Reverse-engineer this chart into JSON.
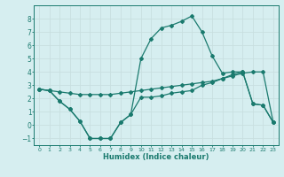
{
  "xlabel": "Humidex (Indice chaleur)",
  "xlim": [
    -0.5,
    23.5
  ],
  "ylim": [
    -1.5,
    9.0
  ],
  "xticks": [
    0,
    1,
    2,
    3,
    4,
    5,
    6,
    7,
    8,
    9,
    10,
    11,
    12,
    13,
    14,
    15,
    16,
    17,
    18,
    19,
    20,
    21,
    22,
    23
  ],
  "yticks": [
    -1,
    0,
    1,
    2,
    3,
    4,
    5,
    6,
    7,
    8
  ],
  "bg_color": "#d6eef0",
  "line_color": "#1a7a6e",
  "grid_color": "#c8dfe0",
  "s1_x": [
    0,
    1,
    2,
    3,
    4,
    5,
    6,
    7,
    8,
    9,
    10,
    11,
    12,
    13,
    14,
    15,
    16,
    17,
    18,
    19,
    20,
    21,
    22,
    23
  ],
  "s1_y": [
    2.7,
    2.6,
    1.8,
    1.2,
    0.3,
    -1.0,
    -1.0,
    -1.0,
    0.2,
    0.8,
    5.0,
    6.5,
    7.3,
    7.5,
    7.8,
    8.2,
    7.0,
    5.2,
    3.9,
    4.0,
    4.0,
    1.6,
    1.5,
    0.2
  ],
  "s2_x": [
    0,
    1,
    2,
    3,
    4,
    5,
    6,
    7,
    8,
    9,
    10,
    11,
    12,
    13,
    14,
    15,
    16,
    17,
    18,
    19,
    20,
    21,
    22,
    23
  ],
  "s2_y": [
    2.7,
    2.6,
    2.5,
    2.4,
    2.3,
    2.3,
    2.3,
    2.3,
    2.4,
    2.5,
    2.6,
    2.7,
    2.8,
    2.9,
    3.0,
    3.1,
    3.2,
    3.3,
    3.5,
    3.7,
    3.9,
    4.0,
    4.0,
    0.2
  ],
  "s3_x": [
    0,
    1,
    2,
    3,
    4,
    5,
    6,
    7,
    8,
    9,
    10,
    11,
    12,
    13,
    14,
    15,
    16,
    17,
    18,
    19,
    20,
    21,
    22,
    23
  ],
  "s3_y": [
    2.7,
    2.6,
    1.8,
    1.2,
    0.3,
    -1.0,
    -1.0,
    -1.0,
    0.2,
    0.8,
    2.1,
    2.1,
    2.2,
    2.4,
    2.5,
    2.6,
    3.0,
    3.2,
    3.5,
    3.8,
    4.0,
    1.6,
    1.5,
    0.2
  ]
}
